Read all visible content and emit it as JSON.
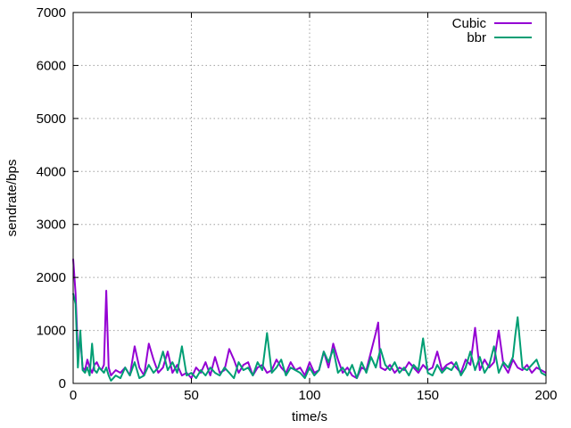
{
  "chart_data": {
    "type": "line",
    "xlabel": "time/s",
    "ylabel": "sendrate/bps",
    "xlim": [
      0,
      200
    ],
    "ylim": [
      0,
      7000
    ],
    "xticks": [
      0,
      50,
      100,
      150,
      200
    ],
    "yticks": [
      0,
      1000,
      2000,
      3000,
      4000,
      5000,
      6000,
      7000
    ],
    "grid": true,
    "legend_position": "top-right",
    "series": [
      {
        "name": "Cubic",
        "color": "#9400d3",
        "x": [
          0,
          1,
          2,
          3,
          4,
          5,
          6,
          7,
          8,
          9,
          10,
          11,
          12,
          13,
          14,
          15,
          16,
          18,
          20,
          22,
          24,
          26,
          28,
          30,
          32,
          34,
          36,
          38,
          40,
          42,
          44,
          46,
          48,
          50,
          52,
          54,
          56,
          58,
          60,
          62,
          64,
          66,
          68,
          70,
          72,
          74,
          76,
          78,
          80,
          82,
          84,
          86,
          88,
          90,
          92,
          94,
          96,
          98,
          100,
          102,
          104,
          106,
          108,
          110,
          112,
          114,
          116,
          118,
          120,
          122,
          124,
          126,
          128,
          129,
          130,
          132,
          134,
          136,
          138,
          140,
          142,
          144,
          146,
          148,
          150,
          152,
          154,
          156,
          158,
          160,
          162,
          164,
          166,
          168,
          170,
          172,
          174,
          176,
          178,
          180,
          182,
          184,
          186,
          188,
          190,
          192,
          194,
          196,
          198,
          200
        ],
        "y": [
          2350,
          1700,
          600,
          850,
          300,
          250,
          450,
          300,
          200,
          350,
          400,
          300,
          250,
          350,
          1750,
          300,
          150,
          250,
          200,
          300,
          150,
          700,
          300,
          150,
          750,
          450,
          200,
          300,
          600,
          200,
          350,
          150,
          200,
          100,
          300,
          200,
          400,
          150,
          500,
          200,
          250,
          650,
          450,
          200,
          350,
          400,
          150,
          300,
          350,
          200,
          250,
          450,
          300,
          200,
          400,
          250,
          300,
          150,
          400,
          200,
          250,
          600,
          300,
          750,
          450,
          200,
          300,
          150,
          100,
          300,
          250,
          600,
          950,
          1150,
          300,
          250,
          350,
          200,
          300,
          250,
          400,
          300,
          200,
          350,
          250,
          300,
          600,
          250,
          350,
          400,
          300,
          200,
          450,
          350,
          1050,
          250,
          450,
          300,
          400,
          1000,
          350,
          200,
          450,
          300,
          250,
          350,
          200,
          300,
          250,
          200
        ]
      },
      {
        "name": "bbr",
        "color": "#009e73",
        "x": [
          0,
          1,
          2,
          3,
          4,
          5,
          6,
          7,
          8,
          9,
          10,
          11,
          12,
          13,
          14,
          15,
          16,
          18,
          20,
          22,
          24,
          26,
          28,
          30,
          32,
          34,
          36,
          38,
          40,
          42,
          44,
          46,
          48,
          50,
          52,
          54,
          56,
          58,
          60,
          62,
          64,
          66,
          68,
          70,
          72,
          74,
          76,
          78,
          80,
          82,
          84,
          86,
          88,
          90,
          92,
          94,
          96,
          98,
          100,
          102,
          104,
          106,
          108,
          110,
          112,
          114,
          116,
          118,
          120,
          122,
          124,
          126,
          128,
          130,
          132,
          134,
          136,
          138,
          140,
          142,
          144,
          146,
          148,
          150,
          152,
          154,
          156,
          158,
          160,
          162,
          164,
          166,
          168,
          170,
          172,
          174,
          176,
          178,
          180,
          182,
          184,
          186,
          187,
          188,
          190,
          192,
          194,
          196,
          198,
          200
        ],
        "y": [
          1700,
          1500,
          300,
          1000,
          250,
          200,
          300,
          150,
          750,
          250,
          200,
          300,
          250,
          200,
          300,
          150,
          50,
          150,
          100,
          300,
          150,
          400,
          100,
          150,
          350,
          200,
          300,
          600,
          250,
          400,
          200,
          700,
          150,
          200,
          100,
          250,
          150,
          300,
          200,
          150,
          300,
          200,
          100,
          400,
          250,
          300,
          150,
          400,
          250,
          950,
          200,
          300,
          450,
          150,
          300,
          250,
          200,
          100,
          300,
          150,
          250,
          600,
          400,
          650,
          200,
          300,
          150,
          350,
          100,
          400,
          200,
          500,
          300,
          650,
          350,
          250,
          400,
          200,
          300,
          150,
          350,
          250,
          850,
          200,
          150,
          350,
          200,
          300,
          250,
          400,
          150,
          300,
          600,
          250,
          500,
          200,
          350,
          700,
          200,
          400,
          300,
          500,
          900,
          1250,
          300,
          250,
          350,
          450,
          200,
          150
        ]
      }
    ]
  }
}
